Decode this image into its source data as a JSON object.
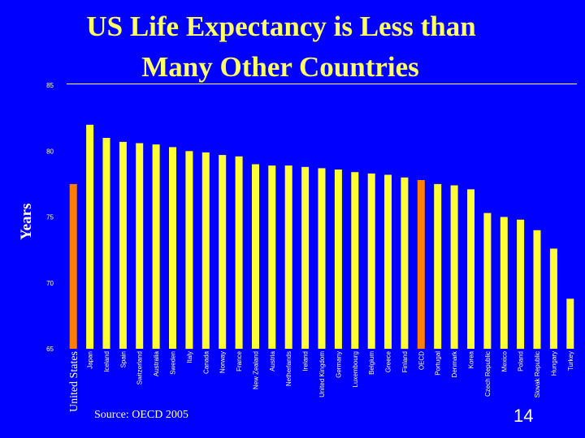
{
  "slide": {
    "title_line1": "US Life Expectancy is Less than",
    "title_line2": "Many Other Countries",
    "source": "Source: OECD 2005",
    "page_number": "14"
  },
  "colors": {
    "background": "#0000ff",
    "bar_default": "#ffff33",
    "bar_highlight": "#ff8000",
    "text": "#ffffcc"
  },
  "chart_data": {
    "type": "bar",
    "ylabel": "Years",
    "ylim": [
      65,
      85
    ],
    "yticks": [
      "85",
      "80",
      "75",
      "70",
      "65"
    ],
    "categories": [
      "United States",
      "Japan",
      "Iceland",
      "Spain",
      "Switzerland",
      "Australia",
      "Sweden",
      "Italy",
      "Canada",
      "Norway",
      "France",
      "New Zealand",
      "Austria",
      "Netherlands",
      "Ireland",
      "United Kingdom",
      "Germany",
      "Luxembourg",
      "Belgium",
      "Greece",
      "Finland",
      "OECD",
      "Portugal",
      "Denmark",
      "Korea",
      "Czech Republic",
      "Mexico",
      "Poland",
      "Slovak Republic",
      "Hungary",
      "Turkey"
    ],
    "values": [
      77.5,
      82.0,
      81.0,
      80.7,
      80.6,
      80.5,
      80.3,
      80.0,
      79.9,
      79.7,
      79.6,
      79.0,
      78.9,
      78.9,
      78.8,
      78.7,
      78.6,
      78.4,
      78.3,
      78.2,
      78.0,
      77.8,
      77.5,
      77.4,
      77.1,
      75.3,
      75.0,
      74.8,
      74.0,
      72.6,
      68.8
    ],
    "highlighted": [
      "United States",
      "OECD"
    ],
    "grid": false,
    "legend": "none"
  }
}
